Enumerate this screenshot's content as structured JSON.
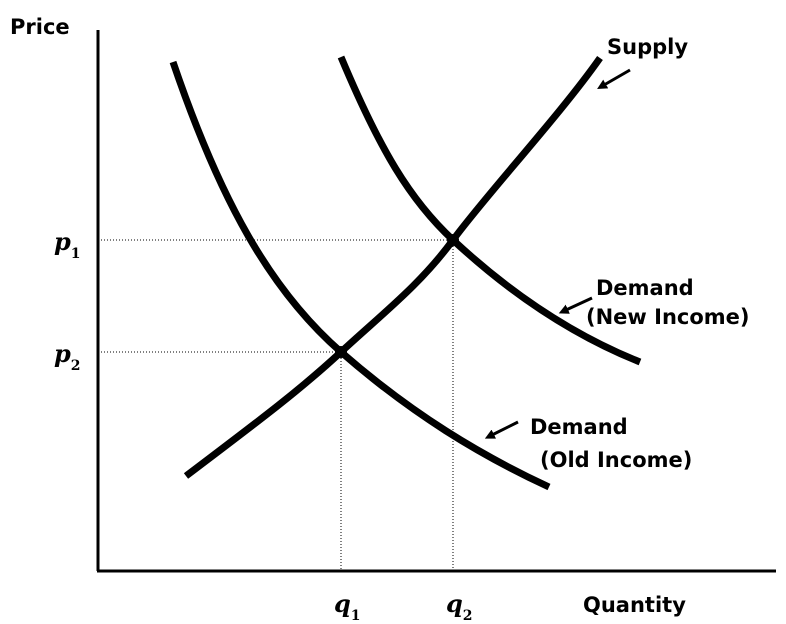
{
  "axes": {
    "y_label": "Price",
    "x_label": "Quantity"
  },
  "curves": {
    "supply": "Supply",
    "demand_new": {
      "line1": "Demand",
      "line2": "(New Income)"
    },
    "demand_old": {
      "line1": "Demand",
      "line2": "(Old Income)"
    }
  },
  "prices": [
    {
      "symbol": "p",
      "subscript": "1"
    },
    {
      "symbol": "p",
      "subscript": "2"
    }
  ],
  "quantities": [
    {
      "symbol": "q",
      "subscript": "1"
    },
    {
      "symbol": "q",
      "subscript": "2"
    }
  ]
}
